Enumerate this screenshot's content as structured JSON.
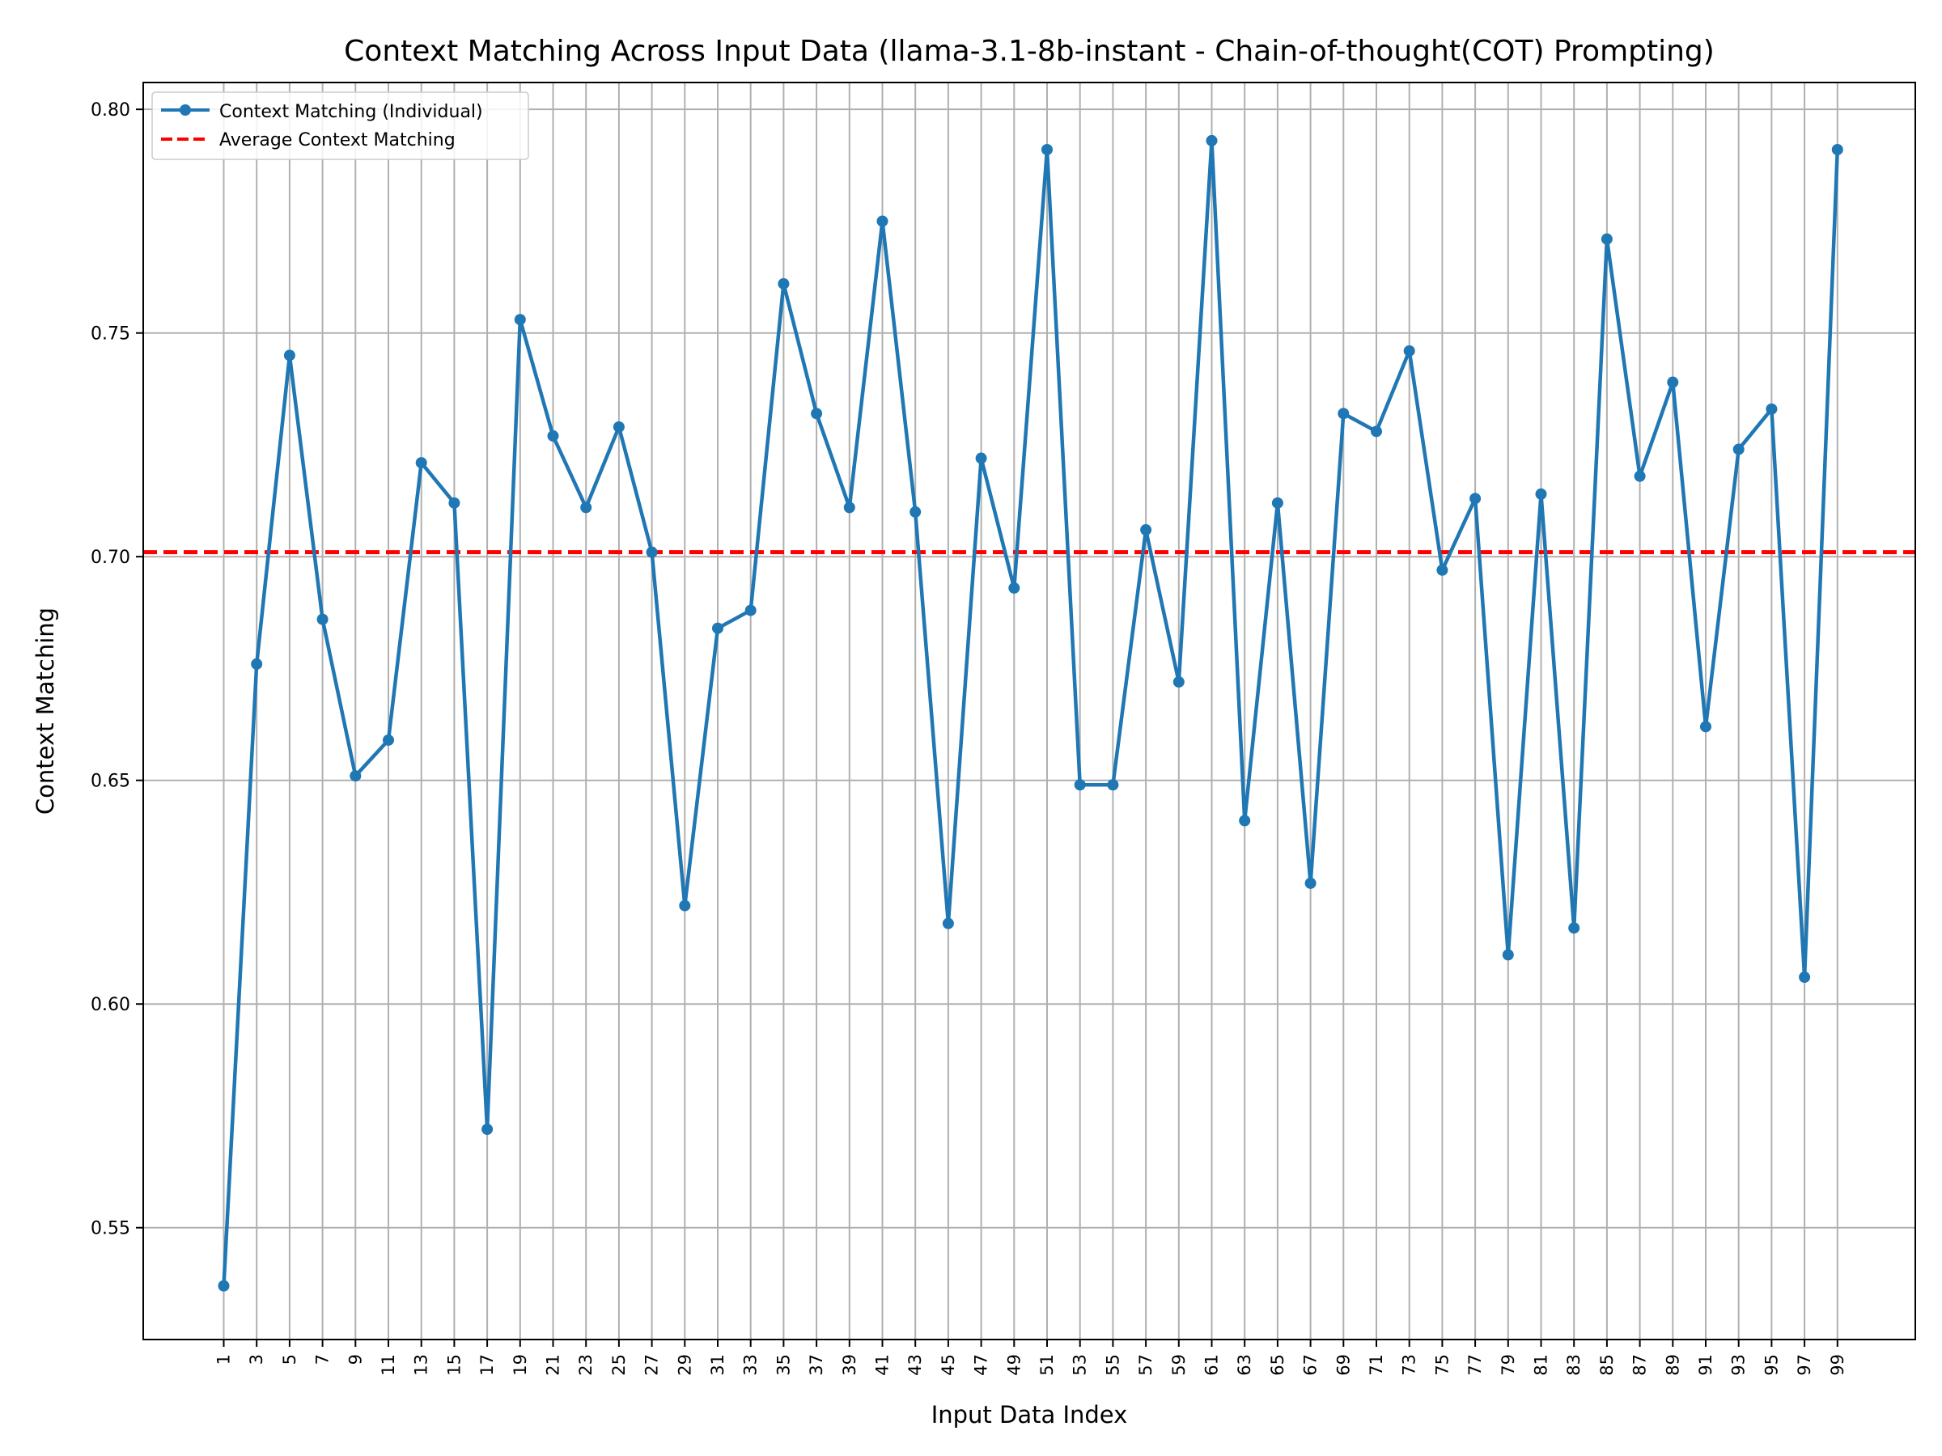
{
  "chart_data": {
    "type": "line",
    "title": "Context Matching Across Input Data (llama-3.1-8b-instant - Chain-of-thought(COT) Prompting)",
    "xlabel": "Input Data Index",
    "ylabel": "Context Matching",
    "ylim": [
      0.525,
      0.806
    ],
    "yticks": [
      "0.55",
      "0.60",
      "0.65",
      "0.70",
      "0.75",
      "0.80"
    ],
    "xticks": [
      "1",
      "3",
      "5",
      "7",
      "9",
      "11",
      "13",
      "15",
      "17",
      "19",
      "21",
      "23",
      "25",
      "27",
      "29",
      "31",
      "33",
      "35",
      "37",
      "39",
      "41",
      "43",
      "45",
      "47",
      "49",
      "51",
      "53",
      "55",
      "57",
      "59",
      "61",
      "63",
      "65",
      "67",
      "69",
      "71",
      "73",
      "75",
      "77",
      "79",
      "81",
      "83",
      "85",
      "87",
      "89",
      "91",
      "93",
      "95",
      "97",
      "99"
    ],
    "grid": true,
    "legend_position": "top-left",
    "x": [
      1,
      3,
      5,
      7,
      9,
      11,
      13,
      15,
      17,
      19,
      21,
      23,
      25,
      27,
      29,
      31,
      33,
      35,
      37,
      39,
      41,
      43,
      45,
      47,
      49,
      51,
      53,
      55,
      57,
      59,
      61,
      63,
      65,
      67,
      69,
      71,
      73,
      75,
      77,
      79,
      81,
      83,
      85,
      87,
      89,
      91,
      93,
      95,
      97,
      99
    ],
    "series": [
      {
        "name": "Context Matching (Individual)",
        "style": "solid-marker",
        "color": "#1f77b4",
        "values": [
          0.537,
          0.676,
          0.745,
          0.686,
          0.651,
          0.659,
          0.721,
          0.712,
          0.572,
          0.753,
          0.727,
          0.711,
          0.729,
          0.701,
          0.622,
          0.684,
          0.688,
          0.761,
          0.732,
          0.711,
          0.775,
          0.71,
          0.618,
          0.722,
          0.693,
          0.791,
          0.649,
          0.649,
          0.706,
          0.672,
          0.793,
          0.641,
          0.712,
          0.627,
          0.732,
          0.728,
          0.746,
          0.697,
          0.713,
          0.611,
          0.714,
          0.617,
          0.771,
          0.718,
          0.739,
          0.662,
          0.724,
          0.733,
          0.606,
          0.791
        ]
      },
      {
        "name": "Average Context Matching",
        "style": "dashed",
        "color": "#ff0000",
        "value": 0.701
      }
    ]
  }
}
